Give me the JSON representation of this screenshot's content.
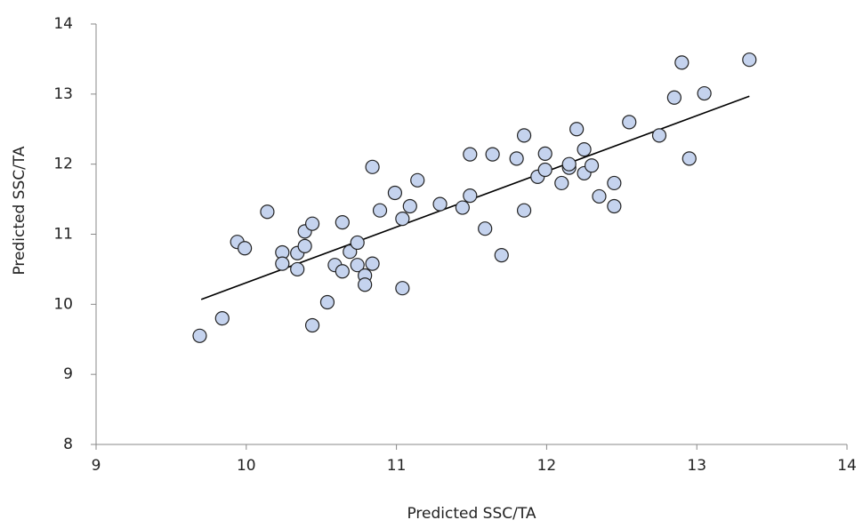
{
  "chart_data": {
    "type": "scatter",
    "x_label": "Predicted SSC/TA",
    "y_label": "Predicted SSC/TA",
    "xlim": [
      9,
      14
    ],
    "ylim": [
      8,
      14
    ],
    "xticks": [
      9,
      10,
      11,
      12,
      13,
      14
    ],
    "yticks": [
      8,
      9,
      10,
      11,
      12,
      13,
      14
    ],
    "series": [
      {
        "color": "#c5d3ee",
        "x": [
          9.69,
          9.84,
          9.94,
          9.99,
          10.14,
          10.24,
          10.24,
          10.34,
          10.34,
          10.39,
          10.39,
          10.44,
          10.44,
          10.54,
          10.59,
          10.64,
          10.64,
          10.69,
          10.74,
          10.74,
          10.79,
          10.79,
          10.84,
          10.84,
          10.89,
          10.99,
          11.04,
          11.04,
          11.09,
          11.14,
          11.29,
          11.44,
          11.49,
          11.49,
          11.59,
          11.64,
          11.7,
          11.8,
          11.85,
          11.85,
          11.94,
          11.99,
          11.99,
          12.1,
          12.15,
          12.15,
          12.2,
          12.25,
          12.25,
          12.3,
          12.35,
          12.45,
          12.45,
          12.55,
          12.75,
          12.85,
          12.9,
          12.95,
          13.05,
          13.35
        ],
        "values": [
          9.55,
          9.8,
          10.89,
          10.8,
          11.32,
          10.74,
          10.58,
          10.73,
          10.5,
          11.04,
          10.83,
          11.15,
          9.7,
          10.03,
          10.56,
          11.17,
          10.47,
          10.75,
          10.88,
          10.56,
          10.41,
          10.28,
          10.58,
          11.96,
          11.34,
          11.59,
          11.22,
          10.23,
          11.4,
          11.77,
          11.43,
          11.38,
          11.55,
          12.14,
          11.08,
          12.14,
          10.7,
          12.08,
          11.34,
          12.41,
          11.82,
          11.92,
          12.15,
          11.73,
          11.95,
          12.0,
          12.5,
          11.87,
          12.21,
          11.98,
          11.54,
          11.4,
          11.73,
          12.6,
          12.41,
          12.95,
          13.45,
          12.08,
          13.01,
          13.49
        ]
      }
    ],
    "trendline": {
      "color": "#000000",
      "x": [
        9.7,
        13.35
      ],
      "values": [
        10.07,
        12.97
      ]
    }
  }
}
